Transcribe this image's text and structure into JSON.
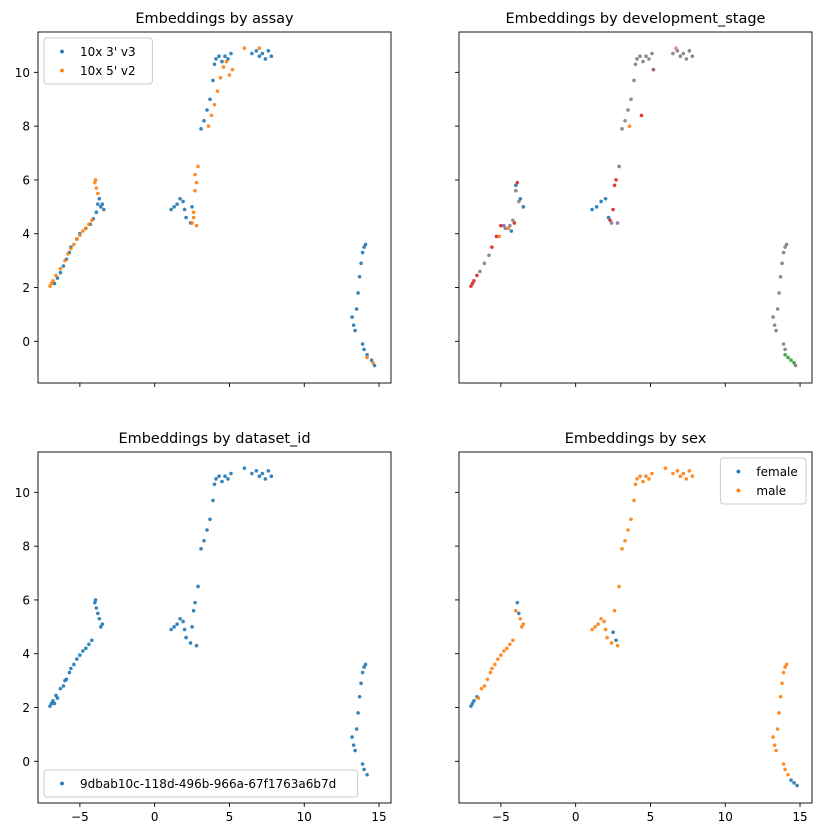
{
  "chart_data": [
    {
      "type": "scatter",
      "title": "Embeddings by assay",
      "xlabel": "",
      "ylabel": "",
      "xlim": [
        -7.8,
        15.8
      ],
      "ylim": [
        -1.55,
        11.5
      ],
      "xticks": [
        -5,
        0,
        5,
        10,
        15
      ],
      "yticks": [
        0,
        2,
        4,
        6,
        8,
        10
      ],
      "show_xticklabels": false,
      "show_yticklabels": true,
      "grid": false,
      "legend": "top-left",
      "colors": [
        "#1f77b4",
        "#ff7f0e"
      ],
      "series": [
        {
          "name": "10x 3' v3",
          "x": [
            -6.7,
            -6.5,
            -6.3,
            -6.1,
            -5.9,
            -5.7,
            -5.6,
            -5.2,
            -5.0,
            -4.6,
            -4.3,
            -4.1,
            -3.9,
            -3.8,
            -3.7,
            -3.6,
            -3.5,
            -3.4,
            1.1,
            1.3,
            1.5,
            1.7,
            1.9,
            2.0,
            2.1,
            2.4,
            2.5,
            3.1,
            3.3,
            3.5,
            3.7,
            3.9,
            4.0,
            4.1,
            4.3,
            4.5,
            4.7,
            4.9,
            5.1,
            6.5,
            6.8,
            7.0,
            7.2,
            7.4,
            7.6,
            7.8,
            13.2,
            13.3,
            13.4,
            13.5,
            13.6,
            13.7,
            13.8,
            13.9,
            14.0,
            14.1,
            13.9,
            14.0,
            14.2,
            14.5,
            14.7
          ],
          "y": [
            2.15,
            2.35,
            2.55,
            2.8,
            3.05,
            3.3,
            3.5,
            3.8,
            4.0,
            4.2,
            4.35,
            4.55,
            4.8,
            5.1,
            5.3,
            5.0,
            5.1,
            4.9,
            4.9,
            5.0,
            5.1,
            5.3,
            5.2,
            4.9,
            4.6,
            4.4,
            5.0,
            7.9,
            8.2,
            8.6,
            9.0,
            9.7,
            10.3,
            10.5,
            10.6,
            10.4,
            10.6,
            10.5,
            10.7,
            10.7,
            10.8,
            10.6,
            10.7,
            10.5,
            10.8,
            10.6,
            0.9,
            0.6,
            0.4,
            1.2,
            1.8,
            2.4,
            2.9,
            3.3,
            3.5,
            3.6,
            -0.1,
            -0.3,
            -0.5,
            -0.7,
            -0.9
          ]
        },
        {
          "name": "10x 5' v2",
          "x": [
            -7.0,
            -6.9,
            -6.8,
            -6.6,
            -6.3,
            -6.0,
            -5.8,
            -5.6,
            -5.4,
            -5.2,
            -5.0,
            -4.8,
            -4.6,
            -4.4,
            -4.2,
            -4.0,
            -3.95,
            -3.9,
            -3.8,
            2.5,
            2.6,
            2.7,
            2.8,
            2.7,
            2.6,
            2.8,
            2.9,
            3.6,
            3.8,
            4.0,
            4.2,
            4.4,
            4.6,
            4.8,
            5.0,
            5.2,
            6.0,
            7.0,
            14.2,
            14.6
          ],
          "y": [
            2.05,
            2.15,
            2.25,
            2.45,
            2.7,
            3.0,
            3.25,
            3.45,
            3.6,
            3.8,
            3.95,
            4.1,
            4.2,
            4.35,
            4.5,
            5.9,
            6.0,
            5.7,
            5.5,
            4.4,
            4.8,
            5.6,
            5.9,
            6.2,
            4.6,
            4.3,
            6.5,
            8.0,
            8.4,
            8.8,
            9.3,
            9.8,
            10.2,
            10.4,
            9.9,
            10.1,
            10.9,
            10.9,
            -0.6,
            -0.8
          ]
        }
      ]
    },
    {
      "type": "scatter",
      "title": "Embeddings by development_stage",
      "xlabel": "",
      "ylabel": "",
      "xlim": [
        -7.8,
        15.8
      ],
      "ylim": [
        -1.55,
        11.5
      ],
      "xticks": [
        -5,
        0,
        5,
        10,
        15
      ],
      "yticks": [
        0,
        2,
        4,
        6,
        8,
        10
      ],
      "show_xticklabels": false,
      "show_yticklabels": false,
      "grid": false,
      "legend": "none",
      "colors": [
        "#1f77b4",
        "#ff7f0e",
        "#2ca02c",
        "#d62728",
        "#9467bd",
        "#8c564b",
        "#e377c2",
        "#7f7f7f"
      ],
      "series": [
        {
          "x": [
            -4.3,
            -4.0,
            -3.7,
            -3.5,
            1.1,
            1.4,
            1.7,
            2.0,
            2.2
          ],
          "y": [
            4.1,
            5.8,
            5.3,
            5.0,
            4.9,
            5.0,
            5.2,
            5.3,
            4.6
          ]
        },
        {
          "x": [
            -5.1,
            -4.5,
            3.6
          ],
          "y": [
            3.9,
            4.2,
            8.0
          ]
        },
        {
          "x": [
            14.0,
            14.2,
            14.4,
            14.6
          ],
          "y": [
            -0.5,
            -0.6,
            -0.7,
            -0.8
          ]
        },
        {
          "x": [
            -7.0,
            -6.9,
            -6.8,
            -6.6,
            -5.6,
            -5.3,
            -5.0,
            -4.1,
            -3.9,
            2.3,
            2.5,
            2.6,
            2.7,
            4.4
          ],
          "y": [
            2.05,
            2.15,
            2.25,
            2.45,
            3.5,
            3.9,
            4.3,
            4.4,
            5.9,
            4.5,
            4.9,
            5.8,
            6.0,
            8.4
          ]
        },
        {
          "x": [
            -4.8,
            2.8
          ],
          "y": [
            4.3,
            4.4
          ]
        },
        {
          "x": [
            5.2
          ],
          "y": [
            10.1
          ]
        },
        {
          "x": [
            6.7
          ],
          "y": [
            10.9
          ]
        },
        {
          "x": [
            -6.4,
            -6.1,
            -5.8,
            -4.7,
            -4.4,
            -4.2,
            -4.0,
            -3.8,
            2.4,
            2.9,
            3.1,
            3.3,
            3.5,
            3.7,
            3.9,
            4.0,
            4.1,
            4.3,
            4.5,
            4.7,
            4.9,
            5.1,
            6.5,
            6.8,
            7.0,
            7.2,
            7.4,
            7.6,
            7.8,
            13.2,
            13.3,
            13.4,
            13.5,
            13.6,
            13.7,
            13.8,
            13.9,
            14.0,
            14.1,
            13.9,
            14.0,
            14.7
          ],
          "y": [
            2.6,
            2.9,
            3.2,
            4.2,
            4.3,
            4.5,
            5.6,
            5.2,
            4.4,
            6.5,
            7.9,
            8.2,
            8.6,
            9.0,
            9.7,
            10.3,
            10.5,
            10.6,
            10.4,
            10.6,
            10.5,
            10.7,
            10.7,
            10.8,
            10.6,
            10.7,
            10.5,
            10.8,
            10.6,
            0.9,
            0.6,
            0.4,
            1.2,
            1.8,
            2.4,
            2.9,
            3.3,
            3.5,
            3.6,
            -0.1,
            -0.3,
            -0.9
          ]
        }
      ]
    },
    {
      "type": "scatter",
      "title": "Embeddings by dataset_id",
      "xlabel": "",
      "ylabel": "",
      "xlim": [
        -7.8,
        15.8
      ],
      "ylim": [
        -1.55,
        11.5
      ],
      "xticks": [
        -5,
        0,
        5,
        10,
        15
      ],
      "yticks": [
        0,
        2,
        4,
        6,
        8,
        10
      ],
      "show_xticklabels": true,
      "show_yticklabels": true,
      "grid": false,
      "legend": "bottom-left",
      "colors": [
        "#1f77b4"
      ],
      "series": [
        {
          "name": "9dbab10c-118d-496b-966a-67f1763a6b7d",
          "x": [
            -7.0,
            -6.9,
            -6.8,
            -6.7,
            -6.6,
            -6.5,
            -6.3,
            -6.1,
            -6.0,
            -5.9,
            -5.7,
            -5.6,
            -5.4,
            -5.2,
            -5.0,
            -4.8,
            -4.6,
            -4.4,
            -4.2,
            -4.0,
            -3.95,
            -3.9,
            -3.8,
            -3.7,
            -3.6,
            -3.5,
            1.1,
            1.3,
            1.5,
            1.7,
            1.9,
            2.0,
            2.1,
            2.4,
            2.5,
            2.6,
            2.7,
            2.8,
            2.9,
            3.1,
            3.3,
            3.5,
            3.7,
            3.9,
            4.0,
            4.1,
            4.3,
            4.5,
            4.7,
            4.9,
            5.1,
            6.0,
            6.5,
            6.8,
            7.0,
            7.2,
            7.4,
            7.6,
            7.8,
            13.2,
            13.3,
            13.4,
            13.5,
            13.6,
            13.7,
            13.8,
            13.9,
            14.0,
            14.1,
            13.9,
            14.0,
            14.2
          ],
          "y": [
            2.05,
            2.15,
            2.25,
            2.15,
            2.45,
            2.35,
            2.7,
            2.8,
            3.0,
            3.05,
            3.3,
            3.45,
            3.6,
            3.8,
            3.95,
            4.1,
            4.2,
            4.35,
            4.5,
            5.9,
            6.0,
            5.7,
            5.5,
            5.3,
            5.0,
            5.1,
            4.9,
            5.0,
            5.1,
            5.3,
            5.2,
            4.9,
            4.6,
            4.4,
            5.0,
            5.6,
            5.9,
            4.3,
            6.5,
            7.9,
            8.2,
            8.6,
            9.0,
            9.7,
            10.3,
            10.5,
            10.6,
            10.4,
            10.6,
            10.5,
            10.7,
            10.9,
            10.7,
            10.8,
            10.6,
            10.7,
            10.5,
            10.8,
            10.6,
            0.9,
            0.6,
            0.4,
            1.2,
            1.8,
            2.4,
            2.9,
            3.3,
            3.5,
            3.6,
            -0.1,
            -0.3,
            -0.5
          ]
        }
      ]
    },
    {
      "type": "scatter",
      "title": "Embeddings by sex",
      "xlabel": "",
      "ylabel": "",
      "xlim": [
        -7.8,
        15.8
      ],
      "ylim": [
        -1.55,
        11.5
      ],
      "xticks": [
        -5,
        0,
        5,
        10,
        15
      ],
      "yticks": [
        0,
        2,
        4,
        6,
        8,
        10
      ],
      "show_xticklabels": true,
      "show_yticklabels": false,
      "grid": false,
      "legend": "top-right",
      "colors": [
        "#1f77b4",
        "#ff7f0e"
      ],
      "series": [
        {
          "name": "female",
          "x": [
            -7.0,
            -6.9,
            -6.8,
            -6.6,
            -3.9,
            -3.8,
            2.5,
            2.7,
            14.4,
            14.6,
            14.8
          ],
          "y": [
            2.05,
            2.15,
            2.25,
            2.4,
            5.9,
            5.5,
            4.8,
            4.5,
            -0.7,
            -0.8,
            -0.9
          ]
        },
        {
          "name": "male",
          "x": [
            -6.5,
            -6.3,
            -6.1,
            -5.9,
            -5.7,
            -5.6,
            -5.4,
            -5.2,
            -5.0,
            -4.8,
            -4.6,
            -4.4,
            -4.2,
            -4.0,
            -3.7,
            -3.6,
            -3.5,
            1.1,
            1.3,
            1.5,
            1.7,
            1.9,
            2.0,
            2.1,
            2.4,
            2.6,
            2.8,
            2.9,
            3.1,
            3.3,
            3.5,
            3.7,
            3.9,
            4.0,
            4.1,
            4.3,
            4.5,
            4.7,
            4.9,
            5.1,
            6.0,
            6.5,
            6.8,
            7.0,
            7.2,
            7.4,
            7.6,
            7.8,
            13.2,
            13.3,
            13.4,
            13.5,
            13.6,
            13.7,
            13.8,
            13.9,
            14.0,
            14.1,
            13.9,
            14.0,
            14.2
          ],
          "y": [
            2.35,
            2.7,
            2.8,
            3.05,
            3.3,
            3.45,
            3.6,
            3.8,
            3.95,
            4.1,
            4.2,
            4.35,
            4.5,
            5.6,
            5.3,
            5.0,
            5.1,
            4.9,
            5.0,
            5.1,
            5.3,
            5.2,
            4.9,
            4.6,
            4.4,
            5.6,
            4.3,
            6.5,
            7.9,
            8.2,
            8.6,
            9.0,
            9.7,
            10.3,
            10.5,
            10.6,
            10.4,
            10.6,
            10.5,
            10.7,
            10.9,
            10.7,
            10.8,
            10.6,
            10.7,
            10.5,
            10.8,
            10.6,
            0.9,
            0.6,
            0.4,
            1.2,
            1.8,
            2.4,
            2.9,
            3.3,
            3.5,
            3.6,
            -0.1,
            -0.3,
            -0.5
          ]
        }
      ]
    }
  ]
}
